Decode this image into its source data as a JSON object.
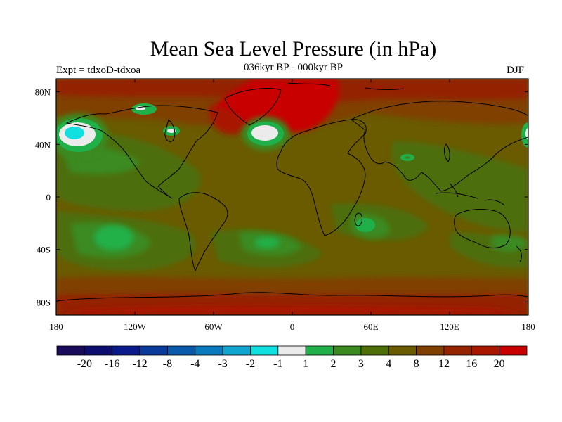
{
  "header": {
    "title": "Mean Sea Level Pressure (in hPa)",
    "subtitle": "036kyr BP - 000kyr BP",
    "experiment": "Expt = tdxoD-tdxoa",
    "season": "DJF"
  },
  "map": {
    "projection": "cylindrical-equidistant",
    "lon_range": [
      -180,
      180
    ],
    "lat_range": [
      -90,
      90
    ],
    "x_ticks": [
      "180",
      "120W",
      "60W",
      "0",
      "60E",
      "120E",
      "180"
    ],
    "y_ticks": [
      "80N",
      "40N",
      "0",
      "40S",
      "80S"
    ],
    "background_level_color": "#6a5a00"
  },
  "colorbar": {
    "colors": [
      "#1a0a5a",
      "#0d0d70",
      "#0a1a8a",
      "#0a3a9a",
      "#0a5aac",
      "#0a7abe",
      "#10a4d0",
      "#10e0e0",
      "#ebebeb",
      "#20b04a",
      "#3a8a20",
      "#4e6e08",
      "#6a5a00",
      "#804000",
      "#942400",
      "#a81800",
      "#c80000"
    ],
    "labels": [
      "-20",
      "-16",
      "-12",
      "-8",
      "-4",
      "-3",
      "-2",
      "-1",
      "1",
      "2",
      "3",
      "4",
      "8",
      "12",
      "16",
      "20"
    ]
  },
  "icons": {
    "coastline": "coastline-outline"
  }
}
